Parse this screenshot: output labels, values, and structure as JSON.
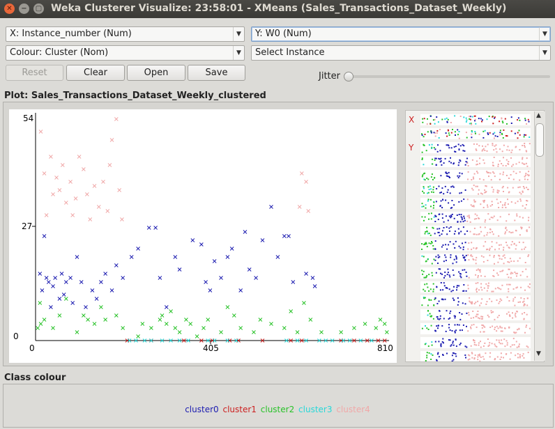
{
  "window": {
    "title": "Weka Clusterer Visualize: 23:58:01 - XMeans (Sales_Transactions_Dataset_Weekly)"
  },
  "controls": {
    "x_axis": "X: Instance_number (Num)",
    "y_axis": "Y: W0 (Num)",
    "colour": "Colour: Cluster (Nom)",
    "select_instance": "Select Instance",
    "reset": "Reset",
    "clear": "Clear",
    "open": "Open",
    "save": "Save",
    "jitter": "Jitter",
    "jitter_level": 0
  },
  "plot": {
    "label": "Plot: Sales_Transactions_Dataset_Weekly_clustered"
  },
  "attr_panel": {
    "x_marker": "X",
    "y_marker": "Y"
  },
  "class_colour": {
    "label": "Class colour",
    "clusters": [
      {
        "name": "cluster0",
        "color": "#1c1cb0"
      },
      {
        "name": "cluster1",
        "color": "#cc1f1f"
      },
      {
        "name": "cluster2",
        "color": "#28c228"
      },
      {
        "name": "cluster3",
        "color": "#27d8d8"
      },
      {
        "name": "cluster4",
        "color": "#f0a8a8"
      }
    ]
  },
  "chart_data": {
    "type": "scatter",
    "xlabel": "Instance_number",
    "ylabel": "W0",
    "xlim": [
      0,
      810
    ],
    "ylim": [
      0,
      54
    ],
    "x_ticks": [
      "0",
      "405",
      "810"
    ],
    "y_ticks": [
      "0",
      "27",
      "54"
    ],
    "marker": "x",
    "series": [
      {
        "name": "cluster0",
        "color": "#1c1cb0",
        "points": [
          [
            10,
            16
          ],
          [
            15,
            12
          ],
          [
            20,
            25
          ],
          [
            25,
            15
          ],
          [
            30,
            14
          ],
          [
            35,
            8
          ],
          [
            40,
            13
          ],
          [
            45,
            15
          ],
          [
            55,
            10
          ],
          [
            60,
            16
          ],
          [
            65,
            11
          ],
          [
            70,
            14
          ],
          [
            80,
            15
          ],
          [
            85,
            9
          ],
          [
            95,
            20
          ],
          [
            105,
            14
          ],
          [
            115,
            8
          ],
          [
            130,
            12
          ],
          [
            140,
            10
          ],
          [
            150,
            14
          ],
          [
            160,
            16
          ],
          [
            175,
            12
          ],
          [
            185,
            18
          ],
          [
            200,
            15
          ],
          [
            220,
            20
          ],
          [
            235,
            22
          ],
          [
            260,
            27
          ],
          [
            275,
            27
          ],
          [
            285,
            15
          ],
          [
            300,
            8
          ],
          [
            320,
            20
          ],
          [
            330,
            17
          ],
          [
            360,
            24
          ],
          [
            380,
            23
          ],
          [
            390,
            14
          ],
          [
            400,
            12
          ],
          [
            410,
            19
          ],
          [
            425,
            15
          ],
          [
            440,
            20
          ],
          [
            450,
            22
          ],
          [
            470,
            12
          ],
          [
            480,
            26
          ],
          [
            490,
            17
          ],
          [
            505,
            15
          ],
          [
            520,
            24
          ],
          [
            540,
            32
          ],
          [
            555,
            20
          ],
          [
            570,
            25
          ],
          [
            580,
            25
          ],
          [
            590,
            14
          ],
          [
            620,
            16
          ],
          [
            635,
            15
          ],
          [
            640,
            13
          ]
        ]
      },
      {
        "name": "cluster1",
        "color": "#cc1f1f",
        "points": [
          [
            210,
            0
          ],
          [
            265,
            0
          ],
          [
            340,
            0
          ],
          [
            380,
            0
          ],
          [
            405,
            0
          ],
          [
            445,
            0
          ],
          [
            465,
            0
          ],
          [
            520,
            0
          ],
          [
            585,
            0
          ],
          [
            610,
            0
          ],
          [
            700,
            0
          ],
          [
            730,
            0
          ],
          [
            760,
            0
          ],
          [
            785,
            0
          ],
          [
            800,
            0
          ]
        ]
      },
      {
        "name": "cluster2",
        "color": "#28c228",
        "points": [
          [
            5,
            3
          ],
          [
            10,
            9
          ],
          [
            12,
            4
          ],
          [
            20,
            5
          ],
          [
            40,
            3
          ],
          [
            55,
            6
          ],
          [
            70,
            10
          ],
          [
            95,
            2
          ],
          [
            110,
            6
          ],
          [
            120,
            5
          ],
          [
            135,
            4
          ],
          [
            150,
            8
          ],
          [
            160,
            5
          ],
          [
            185,
            6
          ],
          [
            200,
            3
          ],
          [
            235,
            1
          ],
          [
            245,
            4
          ],
          [
            265,
            3
          ],
          [
            285,
            5
          ],
          [
            290,
            6
          ],
          [
            300,
            4
          ],
          [
            310,
            7
          ],
          [
            320,
            3
          ],
          [
            330,
            2
          ],
          [
            345,
            5
          ],
          [
            355,
            4
          ],
          [
            370,
            1
          ],
          [
            385,
            3
          ],
          [
            395,
            5
          ],
          [
            425,
            2
          ],
          [
            440,
            8
          ],
          [
            455,
            6
          ],
          [
            470,
            3
          ],
          [
            500,
            2
          ],
          [
            515,
            5
          ],
          [
            540,
            4
          ],
          [
            570,
            3
          ],
          [
            585,
            7
          ],
          [
            600,
            2
          ],
          [
            615,
            9
          ],
          [
            630,
            5
          ],
          [
            655,
            2
          ],
          [
            700,
            2
          ],
          [
            730,
            3
          ],
          [
            755,
            4
          ],
          [
            780,
            3
          ],
          [
            790,
            5
          ],
          [
            800,
            4
          ],
          [
            805,
            2
          ]
        ]
      },
      {
        "name": "cluster3",
        "color": "#27d8d8",
        "points": [
          [
            215,
            0
          ],
          [
            230,
            0
          ],
          [
            250,
            0
          ],
          [
            265,
            0
          ],
          [
            290,
            0
          ],
          [
            310,
            0
          ],
          [
            330,
            0
          ],
          [
            350,
            0
          ],
          [
            395,
            0
          ],
          [
            410,
            0
          ],
          [
            440,
            0
          ],
          [
            460,
            0
          ],
          [
            575,
            0
          ],
          [
            600,
            0
          ],
          [
            620,
            0
          ],
          [
            650,
            0
          ],
          [
            665,
            0
          ],
          [
            680,
            0
          ],
          [
            705,
            0
          ],
          [
            720,
            0
          ],
          [
            745,
            0
          ],
          [
            770,
            0
          ]
        ]
      },
      {
        "name": "cluster4",
        "color": "#f0a8a8",
        "points": [
          [
            12,
            50
          ],
          [
            20,
            40
          ],
          [
            25,
            30
          ],
          [
            35,
            44
          ],
          [
            40,
            35
          ],
          [
            48,
            39
          ],
          [
            55,
            36
          ],
          [
            62,
            42
          ],
          [
            70,
            33
          ],
          [
            80,
            38
          ],
          [
            85,
            30
          ],
          [
            92,
            34
          ],
          [
            100,
            44
          ],
          [
            110,
            41
          ],
          [
            118,
            35
          ],
          [
            125,
            29
          ],
          [
            135,
            37
          ],
          [
            145,
            32
          ],
          [
            155,
            38
          ],
          [
            165,
            31
          ],
          [
            170,
            42
          ],
          [
            175,
            48
          ],
          [
            185,
            53
          ],
          [
            192,
            36
          ],
          [
            198,
            29
          ],
          [
            605,
            32
          ],
          [
            610,
            40
          ],
          [
            620,
            38
          ],
          [
            625,
            31
          ]
        ]
      }
    ]
  }
}
